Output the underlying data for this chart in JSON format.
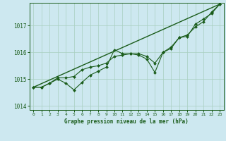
{
  "title": "Graphe pression niveau de la mer (hPa)",
  "background_color": "#cde8f0",
  "grid_color": "#a8cfc0",
  "line_color": "#1a5c1a",
  "x_values": [
    0,
    1,
    2,
    3,
    4,
    5,
    6,
    7,
    8,
    9,
    10,
    11,
    12,
    13,
    14,
    15,
    16,
    17,
    18,
    19,
    20,
    21,
    22,
    23
  ],
  "y_obs": [
    1014.7,
    1014.7,
    1014.85,
    1015.0,
    1014.85,
    1014.6,
    1014.88,
    1015.15,
    1015.3,
    1015.45,
    1016.1,
    1015.95,
    1015.95,
    1015.9,
    1015.75,
    1015.25,
    1016.0,
    1016.15,
    1016.55,
    1016.6,
    1017.05,
    1017.25,
    1017.45,
    1017.8
  ],
  "y_smooth": [
    1014.7,
    1014.7,
    1014.85,
    1015.05,
    1015.05,
    1015.1,
    1015.35,
    1015.45,
    1015.5,
    1015.6,
    1015.85,
    1015.9,
    1015.95,
    1015.95,
    1015.85,
    1015.6,
    1016.0,
    1016.2,
    1016.55,
    1016.65,
    1016.95,
    1017.15,
    1017.5,
    1017.8
  ],
  "trend_x": [
    0,
    23
  ],
  "trend_y": [
    1014.7,
    1017.8
  ],
  "ylim": [
    1013.85,
    1017.85
  ],
  "yticks": [
    1014,
    1015,
    1016,
    1017
  ],
  "xlim": [
    -0.5,
    23.5
  ]
}
